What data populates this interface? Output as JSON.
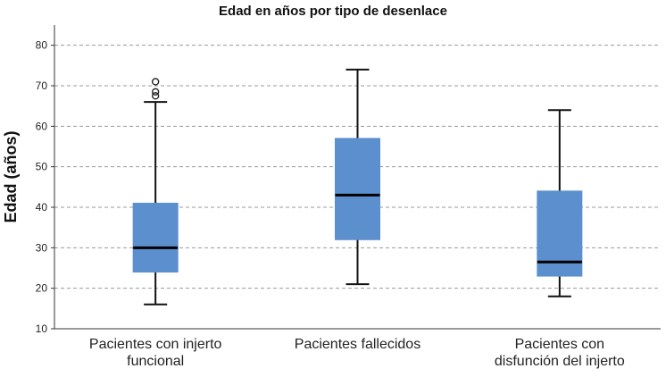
{
  "chart_data": {
    "type": "boxplot",
    "title": "Edad en años por tipo de desenlace",
    "xlabel": "",
    "ylabel": "Edad (años)",
    "ylim": [
      10,
      85
    ],
    "yticks": [
      10,
      20,
      30,
      40,
      50,
      60,
      70,
      80
    ],
    "grid": "horizontal dashed",
    "box_color": "#5b8fce",
    "categories": [
      [
        "Pacientes con injerto",
        "funcional"
      ],
      [
        "Pacientes fallecidos"
      ],
      [
        "Pacientes con",
        "disfunción del injerto"
      ]
    ],
    "boxes": [
      {
        "min": 16,
        "q1": 24,
        "median": 30,
        "q3": 41,
        "max": 66,
        "outliers": [
          67.5,
          68.5,
          71
        ]
      },
      {
        "min": 21,
        "q1": 32,
        "median": 43,
        "q3": 57,
        "max": 74,
        "outliers": []
      },
      {
        "min": 18,
        "q1": 23,
        "median": 26.5,
        "q3": 44,
        "max": 64,
        "outliers": []
      }
    ]
  }
}
